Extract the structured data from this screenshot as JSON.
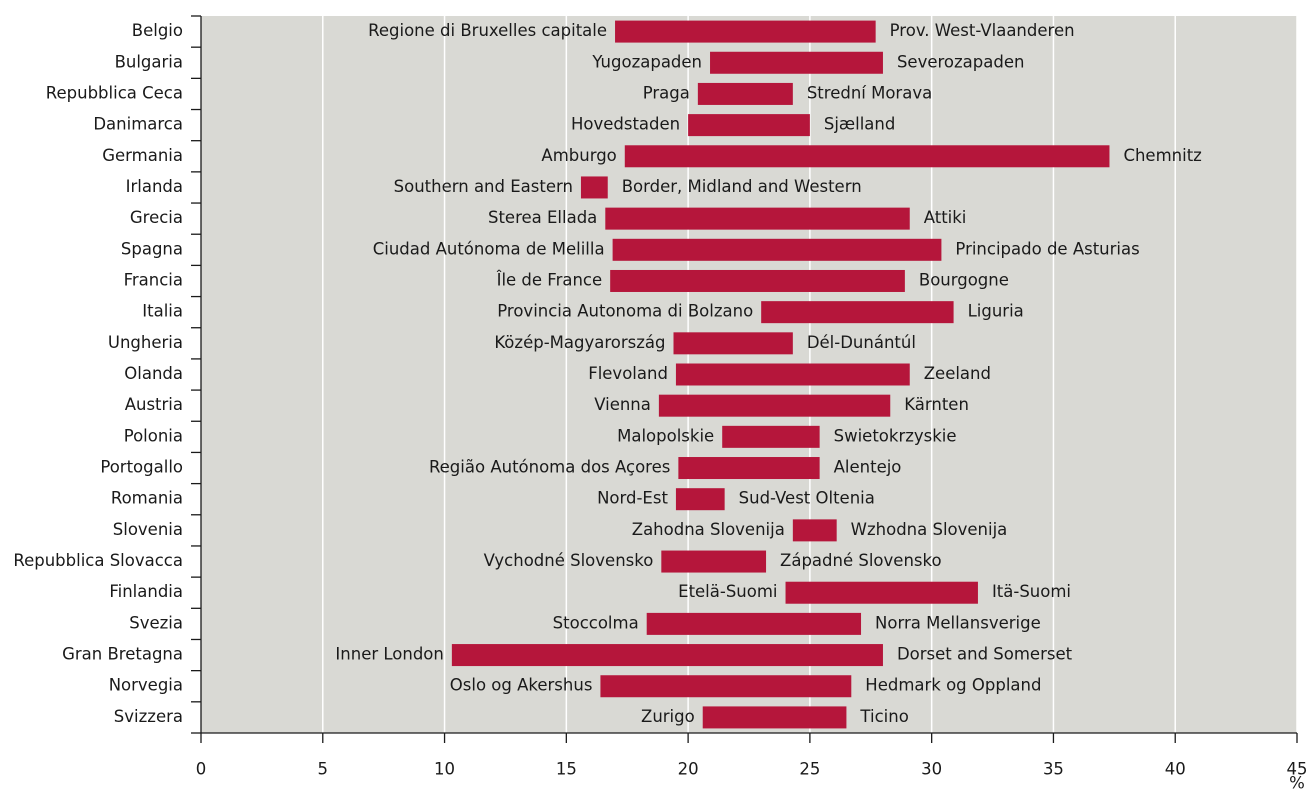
{
  "chart_data": {
    "type": "range-bar",
    "categories": [
      "Belgio",
      "Bulgaria",
      "Repubblica Ceca",
      "Danimarca",
      "Germania",
      "Irlanda",
      "Grecia",
      "Spagna",
      "Francia",
      "Italia",
      "Ungheria",
      "Olanda",
      "Austria",
      "Polonia",
      "Portogallo",
      "Romania",
      "Slovenia",
      "Repubblica Slovacca",
      "Finlandia",
      "Svezia",
      "Gran Bretagna",
      "Norvegia",
      "Svizzera"
    ],
    "low": [
      17.0,
      20.9,
      20.4,
      20.0,
      17.4,
      15.6,
      16.6,
      16.9,
      16.8,
      23.0,
      19.4,
      19.5,
      18.8,
      21.4,
      19.6,
      19.5,
      24.3,
      18.9,
      24.0,
      18.3,
      10.3,
      16.4,
      20.6
    ],
    "high": [
      27.7,
      28.0,
      24.3,
      25.0,
      37.3,
      16.7,
      29.1,
      30.4,
      28.9,
      30.9,
      24.3,
      29.1,
      28.3,
      25.4,
      25.4,
      21.5,
      26.1,
      23.2,
      31.9,
      27.1,
      28.0,
      26.7,
      26.5
    ],
    "low_labels": [
      "Regione di Bruxelles capitale",
      "Yugozapaden",
      "Praga",
      "Hovedstaden",
      "Amburgo",
      "Southern and Eastern",
      "Sterea Ellada",
      "Ciudad Autónoma de Melilla",
      "Île de France",
      "Provincia Autonoma di Bolzano",
      "Közép-Magyarország",
      "Flevoland",
      "Vienna",
      "Malopolskie",
      "Região Autónoma dos Açores",
      "Nord-Est",
      "Zahodna Slovenija",
      "Vychodné Slovensko",
      "Etelä-Suomi",
      "Stoccolma",
      "Inner London",
      "Oslo og Akershus",
      "Zurigo"
    ],
    "high_labels": [
      "Prov. West-Vlaanderen",
      "Severozapaden",
      "Strední Morava",
      "Sjælland",
      "Chemnitz",
      "Border, Midland and Western",
      "Attiki",
      "Principado de Asturias",
      "Bourgogne",
      "Liguria",
      "Dél-Dunántúl",
      "Zeeland",
      "Kärnten",
      "Swietokrzyskie",
      "Alentejo",
      "Sud-Vest Oltenia",
      "Wzhodna Slovenija",
      "Západné Slovensko",
      "Itä-Suomi",
      "Norra Mellansverige",
      "Dorset and Somerset",
      "Hedmark og Oppland",
      "Ticino"
    ],
    "color": "#b5163b",
    "background": "#d9d9d4",
    "xlim": [
      0,
      45
    ],
    "xticks": [
      0,
      5,
      10,
      15,
      20,
      25,
      30,
      35,
      40,
      45
    ],
    "xlabel": "%",
    "grid": true
  }
}
